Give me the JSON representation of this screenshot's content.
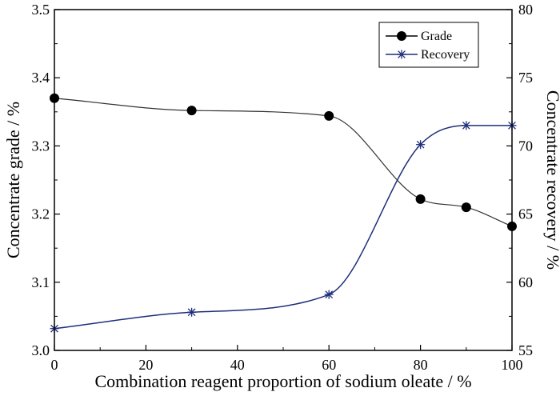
{
  "chart_data": {
    "type": "line",
    "x": [
      0,
      30,
      60,
      80,
      90,
      100
    ],
    "xlabel": "Combination reagent proportion of sodium oleate / %",
    "ylabel_left": "Concentrate grade / %",
    "ylabel_right": "Concentrate recovery / %",
    "xlim": [
      0,
      100
    ],
    "ylim_left": [
      3.0,
      3.5
    ],
    "ylim_right": [
      55,
      80
    ],
    "x_ticks": [
      "0",
      "20",
      "40",
      "60",
      "80",
      "100"
    ],
    "y_left_ticks": [
      "3.0",
      "3.1",
      "3.2",
      "3.3",
      "3.4",
      "3.5"
    ],
    "y_right_ticks": [
      "55",
      "60",
      "65",
      "70",
      "75",
      "80"
    ],
    "legend_position": "top-right",
    "grid": false,
    "series": [
      {
        "name": "Grade",
        "axis": "left",
        "marker": "circle",
        "color": "#000000",
        "line_color": "#333333",
        "values": [
          3.37,
          3.352,
          3.344,
          3.222,
          3.21,
          3.182
        ]
      },
      {
        "name": "Recovery",
        "axis": "right",
        "marker": "asterisk",
        "color": "#1f2f7a",
        "line_color": "#1f2f7a",
        "values": [
          56.6,
          57.8,
          59.1,
          70.1,
          71.5,
          71.5
        ]
      }
    ]
  }
}
